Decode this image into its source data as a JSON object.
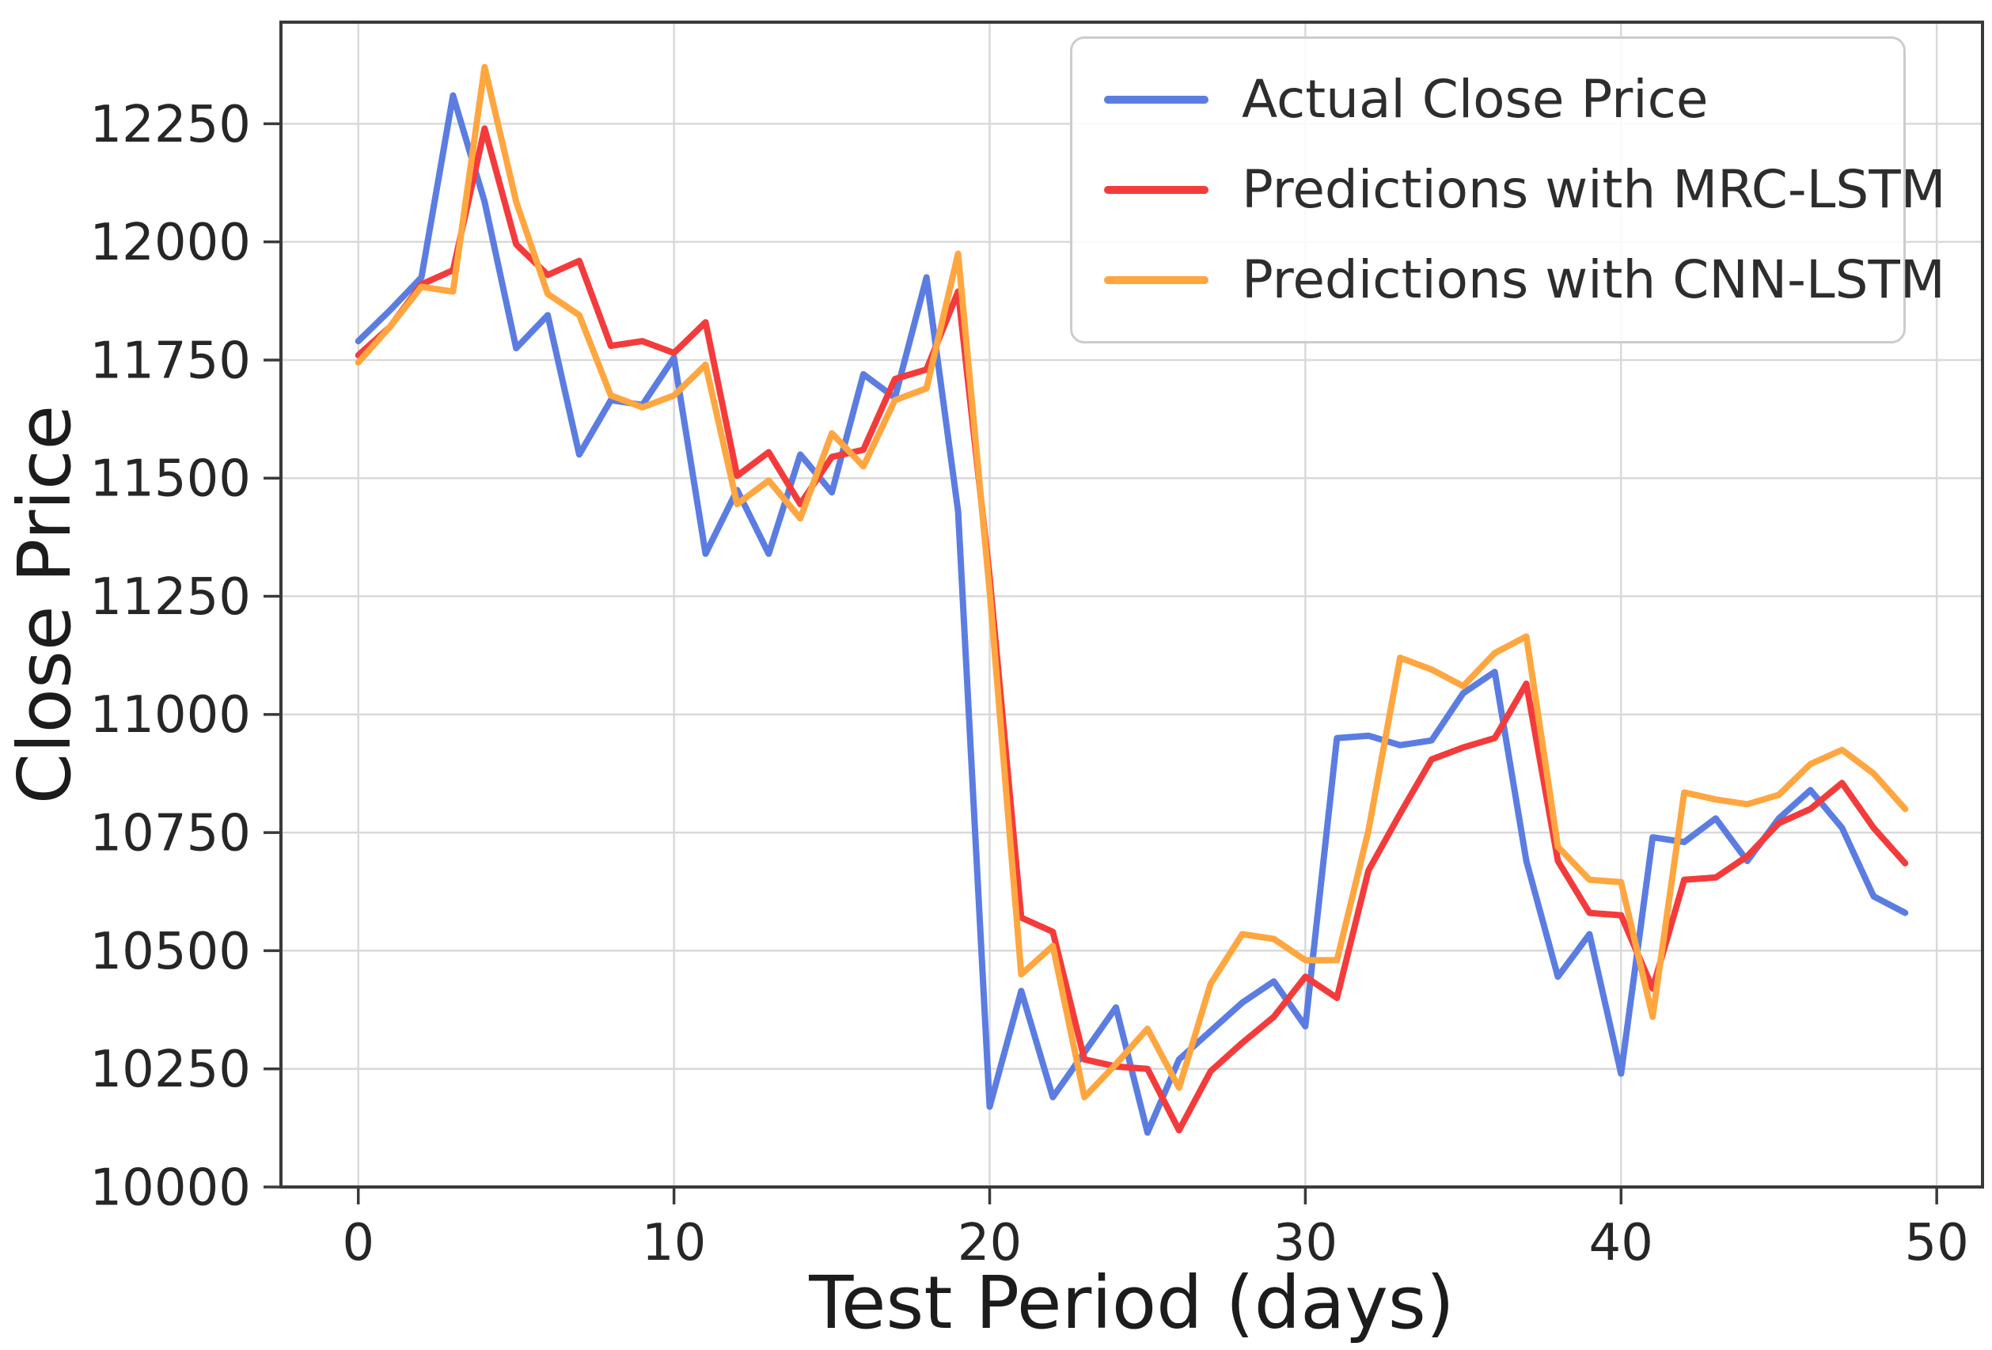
{
  "axes": {
    "xlabel": "Test Period (days)",
    "ylabel": "Close Price"
  },
  "chart_data": {
    "type": "line",
    "title": "",
    "xlabel": "Test Period (days)",
    "ylabel": "Close Price",
    "x": [
      0,
      1,
      2,
      3,
      4,
      5,
      6,
      7,
      8,
      9,
      10,
      11,
      12,
      13,
      14,
      15,
      16,
      17,
      18,
      19,
      20,
      21,
      22,
      23,
      24,
      25,
      26,
      27,
      28,
      29,
      30,
      31,
      32,
      33,
      34,
      35,
      36,
      37,
      38,
      39,
      40,
      41,
      42,
      43,
      44,
      45,
      46,
      47,
      48,
      49
    ],
    "xticks": [
      0,
      10,
      20,
      30,
      40,
      50
    ],
    "yticks": [
      10000,
      10250,
      10500,
      10750,
      11000,
      11250,
      11500,
      11750,
      12000,
      12250
    ],
    "xlim": [
      -2.45,
      51.45
    ],
    "ylim": [
      10000,
      12465
    ],
    "grid": true,
    "legend_position": "upper right",
    "colors": {
      "grid": "#d9d9d9",
      "spine": "#3a3a3a",
      "background": "#ffffff"
    },
    "series": [
      {
        "name": "Actual Close Price",
        "color": "#5b7de2",
        "values": [
          11790,
          11855,
          11925,
          12310,
          12085,
          11775,
          11845,
          11550,
          11665,
          11655,
          11755,
          11340,
          11475,
          11340,
          11550,
          11470,
          11720,
          11670,
          11925,
          11430,
          10170,
          10415,
          10190,
          10285,
          10380,
          10115,
          10270,
          10330,
          10390,
          10435,
          10340,
          10950,
          10955,
          10935,
          10945,
          11045,
          11090,
          10690,
          10445,
          10535,
          10240,
          10740,
          10730,
          10780,
          10690,
          10780,
          10840,
          10760,
          10615,
          10580
        ]
      },
      {
        "name": "Predictions with MRC-LSTM",
        "color": "#f43b3b",
        "values": [
          11760,
          11820,
          11910,
          11940,
          12240,
          11995,
          11930,
          11960,
          11780,
          11790,
          11765,
          11830,
          11505,
          11555,
          11445,
          11545,
          11560,
          11710,
          11730,
          11895,
          11290,
          10570,
          10540,
          10270,
          10255,
          10250,
          10120,
          10245,
          10305,
          10360,
          10445,
          10400,
          10670,
          10790,
          10905,
          10930,
          10950,
          11065,
          10690,
          10580,
          10575,
          10420,
          10650,
          10655,
          10700,
          10770,
          10800,
          10855,
          10760,
          10685
        ]
      },
      {
        "name": "Predictions with CNN-LSTM",
        "color": "#ffa640",
        "values": [
          11745,
          11820,
          11905,
          11895,
          12370,
          12085,
          11890,
          11845,
          11675,
          11650,
          11675,
          11740,
          11445,
          11495,
          11415,
          11595,
          11525,
          11665,
          11690,
          11975,
          11260,
          10450,
          10510,
          10190,
          10260,
          10335,
          10210,
          10430,
          10535,
          10525,
          10480,
          10480,
          10755,
          11120,
          11095,
          11060,
          11130,
          11165,
          10720,
          10650,
          10645,
          10360,
          10835,
          10820,
          10810,
          10830,
          10895,
          10925,
          10875,
          10800
        ]
      }
    ]
  },
  "legend": {
    "items": [
      "Actual Close Price",
      "Predictions with MRC-LSTM",
      "Predictions with CNN-LSTM"
    ]
  }
}
